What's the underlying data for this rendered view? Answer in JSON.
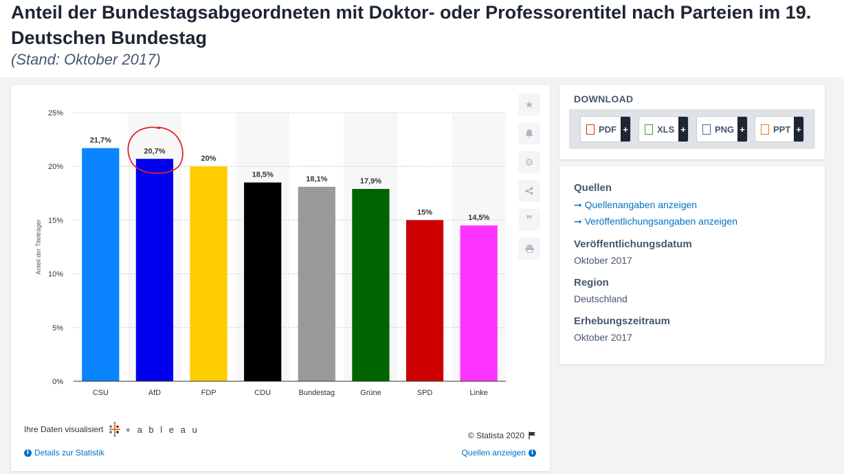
{
  "header": {
    "title": "Anteil der Bundestagsabgeordneten mit Doktor- oder Professorentitel nach Parteien im 19. Deutschen Bundestag",
    "subtitle": "(Stand: Oktober 2017)"
  },
  "chart_data": {
    "type": "bar",
    "categories": [
      "CSU",
      "AfD",
      "FDP",
      "CDU",
      "Bundestag",
      "Grüne",
      "SPD",
      "Linke"
    ],
    "values": [
      21.7,
      20.7,
      20,
      18.5,
      18.1,
      17.9,
      15,
      14.5
    ],
    "value_labels": [
      "21,7%",
      "20,7%",
      "20%",
      "18,5%",
      "18,1%",
      "17,9%",
      "15%",
      "14,5%"
    ],
    "colors": [
      "#0a84ff",
      "#0000ee",
      "#ffcc00",
      "#000000",
      "#999999",
      "#006400",
      "#cc0000",
      "#ff33ff"
    ],
    "ylabel": "Anteil der Titelträger",
    "ylim": [
      0,
      25
    ],
    "yticks": [
      0,
      5,
      10,
      15,
      20,
      25
    ],
    "ytick_labels": [
      "0%",
      "5%",
      "10%",
      "15%",
      "20%",
      "25%"
    ],
    "grid": true,
    "highlight": {
      "category": "AfD",
      "style": "red hand-drawn circle",
      "color": "#e0202a"
    }
  },
  "chart_footer": {
    "tableau_text": "Ihre Daten visualisiert",
    "tableau_brand": "+ a b l e a u",
    "copyright": "© Statista 2020",
    "details_link": "Details zur Statistik",
    "sources_link": "Quellen anzeigen"
  },
  "toolbar": {
    "icons": [
      "star-icon",
      "bell-icon",
      "gear-icon",
      "share-icon",
      "quote-icon",
      "print-icon"
    ]
  },
  "download": {
    "title": "DOWNLOAD",
    "buttons": [
      {
        "label": "PDF",
        "icon_color": "#d9261c"
      },
      {
        "label": "XLS",
        "icon_color": "#3a9a3a"
      },
      {
        "label": "PNG",
        "icon_color": "#2c6cc4"
      },
      {
        "label": "PPT",
        "icon_color": "#e07b1a"
      }
    ],
    "plus": "+"
  },
  "sources": {
    "quellen_heading": "Quellen",
    "link1": "➞ Quellenangaben anzeigen",
    "link2": "➞ Veröffentlichungsangaben anzeigen",
    "pub_date_heading": "Veröffentlichungsdatum",
    "pub_date": "Oktober 2017",
    "region_heading": "Region",
    "region": "Deutschland",
    "period_heading": "Erhebungszeitraum",
    "period": "Oktober 2017"
  }
}
